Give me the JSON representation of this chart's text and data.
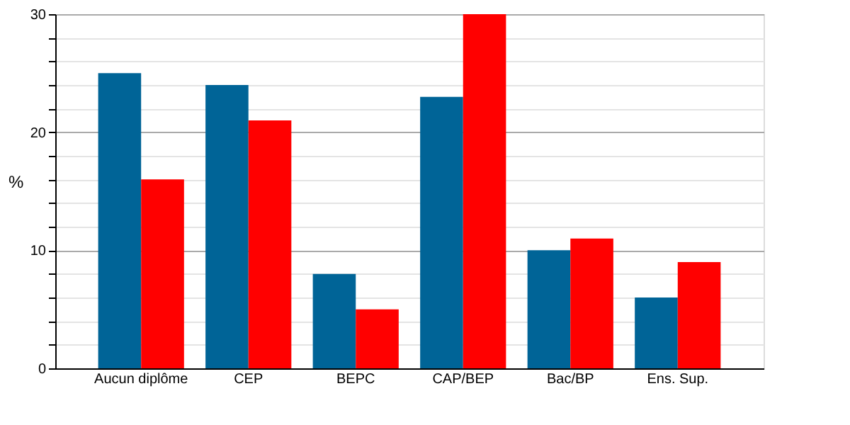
{
  "chart_data": {
    "type": "bar",
    "ylabel": "%",
    "categories": [
      "Aucun diplôme",
      "CEP",
      "BEPC",
      "CAP/BEP",
      "Bac/BP",
      "Ens. Sup."
    ],
    "series": [
      {
        "color": "#006497",
        "values": [
          25,
          24,
          8,
          23,
          10,
          6
        ]
      },
      {
        "color": "#ff0000",
        "values": [
          16,
          21,
          5,
          30,
          11,
          9
        ]
      }
    ],
    "ylim": [
      0,
      30
    ],
    "yticks": [
      0,
      {
        "value": 2,
        "label": null
      },
      {
        "value": 4,
        "label": null
      },
      {
        "value": 6,
        "label": null
      },
      {
        "value": 8,
        "label": null
      },
      10,
      {
        "value": 12,
        "label": null
      },
      {
        "value": 14,
        "label": null
      },
      {
        "value": 16,
        "label": null
      },
      {
        "value": 18,
        "label": null
      },
      20,
      {
        "value": 22,
        "label": null
      },
      {
        "value": 24,
        "label": null
      },
      {
        "value": 26,
        "label": null
      },
      {
        "value": 28,
        "label": null
      },
      30
    ],
    "grid": "y",
    "legend": false
  }
}
